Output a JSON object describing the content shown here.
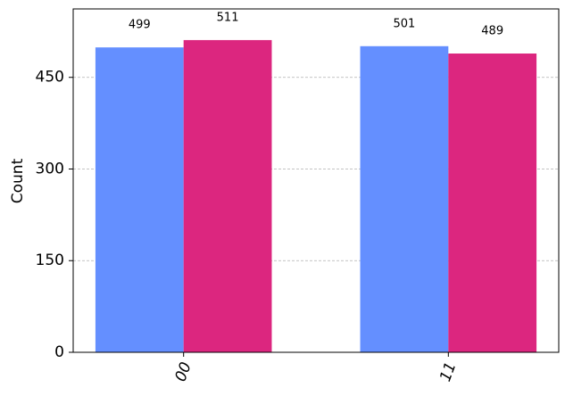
{
  "chart_data": {
    "type": "bar",
    "y_label": "Count",
    "categories": [
      "00",
      "11"
    ],
    "series": [
      {
        "color": "#648fff",
        "values": [
          499,
          501
        ]
      },
      {
        "color": "#dc267f",
        "values": [
          511,
          489
        ]
      }
    ],
    "ylim": [
      0,
      562
    ],
    "yticks": [
      0,
      150,
      300,
      450
    ],
    "grid": true
  }
}
